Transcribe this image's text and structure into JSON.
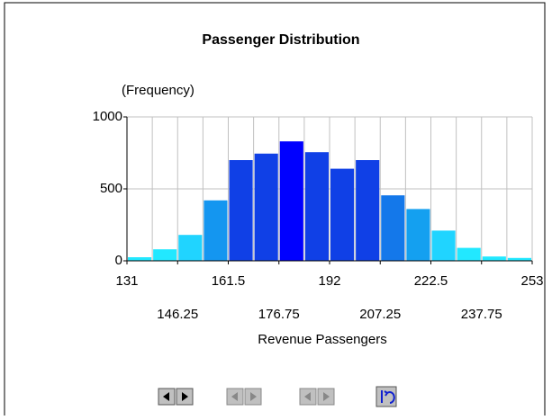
{
  "chart_data": {
    "type": "histogram",
    "title": "Passenger Distribution",
    "ylabel": "(Frequency)",
    "xlabel": "Revenue Passengers",
    "bins": [
      131,
      138.625,
      146.25,
      153.875,
      161.5,
      169.125,
      176.75,
      184.375,
      192,
      199.625,
      207.25,
      214.875,
      222.5,
      230.125,
      237.75,
      245.375,
      253
    ],
    "counts": [
      25,
      80,
      180,
      420,
      700,
      745,
      830,
      755,
      640,
      700,
      455,
      360,
      210,
      90,
      30,
      20
    ],
    "colors": [
      "#22e8ff",
      "#22e8ff",
      "#20d4ff",
      "#1496f0",
      "#1040e6",
      "#1040e6",
      "#0000ff",
      "#1040e6",
      "#1040e6",
      "#1040e6",
      "#1478ea",
      "#14a0f0",
      "#20d4ff",
      "#22e8ff",
      "#22e8ff",
      "#22e8ff"
    ],
    "xlim": [
      131,
      253
    ],
    "ylim": [
      0,
      1000
    ],
    "xticks": [
      131,
      146.25,
      161.5,
      176.75,
      192,
      207.25,
      222.5,
      237.75,
      253
    ],
    "yticks": [
      0,
      500,
      1000
    ],
    "grid": true
  }
}
